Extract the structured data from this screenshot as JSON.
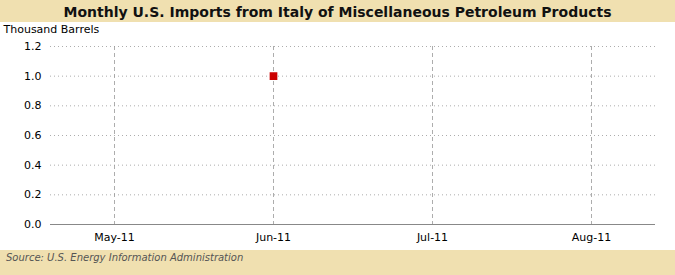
{
  "chart_data": {
    "type": "scatter",
    "title": "Monthly U.S. Imports from Italy of Miscellaneous Petroleum Products",
    "ylabel": "Thousand Barrels",
    "caption": "Source: U.S. Energy Information Administration",
    "categories": [
      "May-11",
      "Jun-11",
      "Jul-11",
      "Aug-11"
    ],
    "values": [
      null,
      1.0,
      null,
      null
    ],
    "color": "#cc0000",
    "marker": "square",
    "ylim": [
      0,
      1.2
    ],
    "yticks": [
      {
        "value": 0,
        "label": "0.0"
      },
      0.2,
      0.4,
      0.6,
      0.8,
      {
        "value": 1,
        "label": "1.0"
      },
      1.2
    ],
    "grid": true
  }
}
